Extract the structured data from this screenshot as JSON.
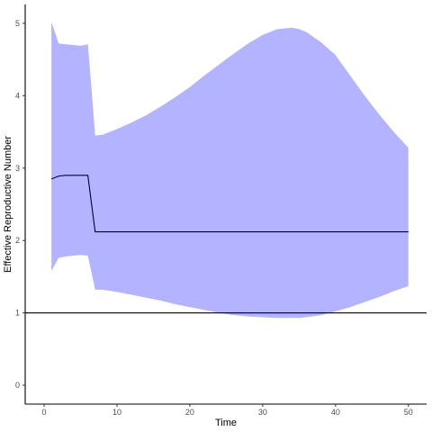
{
  "chart_data": {
    "type": "area",
    "xlabel": "Time",
    "ylabel": "Effective Reproductive Number",
    "xlim": [
      -2.6,
      52.5
    ],
    "ylim": [
      -0.26,
      5.26
    ],
    "x_ticks": [
      0,
      10,
      20,
      30,
      40,
      50
    ],
    "y_ticks": [
      0,
      1,
      2,
      3,
      4,
      5
    ],
    "grid": false,
    "legend": "none",
    "reference_line": {
      "y": 1,
      "color": "#000000"
    },
    "colors": {
      "band": "#b3b3ff",
      "line": "#000033",
      "axis": "#000000"
    },
    "series": [
      {
        "kind": "ribbon",
        "x": [
          1,
          2,
          3,
          4,
          5,
          6,
          6.5,
          7,
          8,
          10,
          12,
          14,
          16,
          18,
          20,
          22,
          24,
          26,
          28,
          30,
          32,
          34,
          35,
          36,
          38,
          40,
          42,
          44,
          46,
          48,
          50
        ],
        "upper": [
          5.02,
          4.72,
          4.71,
          4.7,
          4.69,
          4.71,
          4.1,
          3.45,
          3.46,
          3.54,
          3.63,
          3.73,
          3.85,
          3.98,
          4.12,
          4.28,
          4.43,
          4.58,
          4.72,
          4.84,
          4.92,
          4.94,
          4.92,
          4.88,
          4.74,
          4.56,
          4.28,
          4.0,
          3.74,
          3.5,
          3.28
        ],
        "lower": [
          1.58,
          1.76,
          1.78,
          1.79,
          1.8,
          1.79,
          1.56,
          1.32,
          1.32,
          1.29,
          1.25,
          1.21,
          1.17,
          1.12,
          1.08,
          1.04,
          1.0,
          0.97,
          0.95,
          0.94,
          0.93,
          0.93,
          0.93,
          0.94,
          0.97,
          1.02,
          1.08,
          1.15,
          1.22,
          1.3,
          1.37
        ]
      },
      {
        "kind": "line",
        "x": [
          1,
          2,
          3,
          4,
          5,
          6,
          7,
          10,
          20,
          30,
          40,
          50
        ],
        "y": [
          2.85,
          2.89,
          2.9,
          2.9,
          2.9,
          2.9,
          2.12,
          2.12,
          2.12,
          2.12,
          2.12,
          2.12
        ]
      }
    ]
  }
}
